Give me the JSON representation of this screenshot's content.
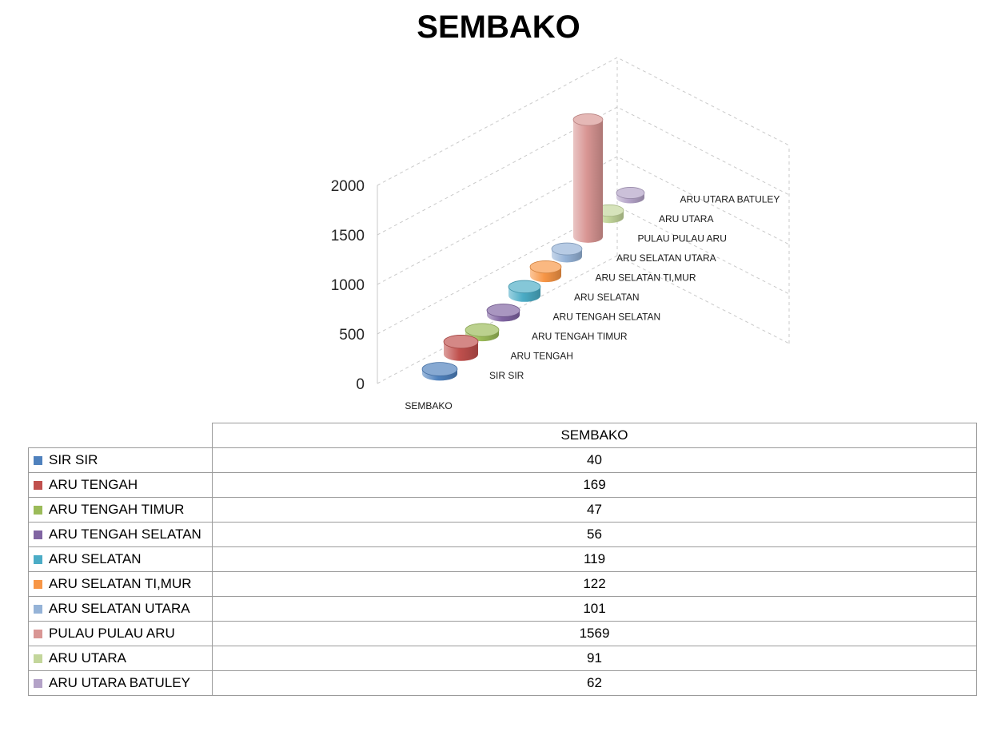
{
  "page": {
    "title": "SEMBAKO"
  },
  "chart_data": {
    "type": "bar",
    "style": "3d-cylinder",
    "title": "SEMBAKO",
    "series_name": "SEMBAKO",
    "depth_axis_label": "SEMBAKO",
    "categories": [
      "SIR SIR",
      "ARU TENGAH",
      "ARU TENGAH TIMUR",
      "ARU TENGAH SELATAN",
      "ARU SELATAN",
      "ARU SELATAN TI,MUR",
      "ARU SELATAN UTARA",
      "PULAU PULAU ARU",
      "ARU UTARA",
      "ARU UTARA BATULEY"
    ],
    "values": [
      40,
      169,
      47,
      56,
      119,
      122,
      101,
      1569,
      91,
      62
    ],
    "colors": [
      "#4F81BD",
      "#C0504D",
      "#9BBB59",
      "#8064A2",
      "#4BACC6",
      "#F79646",
      "#95B3D7",
      "#D99694",
      "#C3D69B",
      "#B3A2C7"
    ],
    "ylim": [
      0,
      2000
    ],
    "yticks": [
      0,
      500,
      1000,
      1500,
      2000
    ],
    "grid": "dashed",
    "legend_position": "none"
  },
  "table": {
    "header": "SEMBAKO",
    "rows": [
      {
        "label": "SIR SIR",
        "value": "40",
        "color": "#4F81BD"
      },
      {
        "label": "ARU TENGAH",
        "value": "169",
        "color": "#C0504D"
      },
      {
        "label": "ARU TENGAH TIMUR",
        "value": "47",
        "color": "#9BBB59"
      },
      {
        "label": "ARU TENGAH SELATAN",
        "value": "56",
        "color": "#8064A2"
      },
      {
        "label": "ARU SELATAN",
        "value": "119",
        "color": "#4BACC6"
      },
      {
        "label": "ARU SELATAN TI,MUR",
        "value": "122",
        "color": "#F79646"
      },
      {
        "label": "ARU SELATAN UTARA",
        "value": "101",
        "color": "#95B3D7"
      },
      {
        "label": "PULAU PULAU ARU",
        "value": "1569",
        "color": "#D99694"
      },
      {
        "label": "ARU UTARA",
        "value": "91",
        "color": "#C3D69B"
      },
      {
        "label": "ARU UTARA BATULEY",
        "value": "62",
        "color": "#B3A2C7"
      }
    ]
  }
}
